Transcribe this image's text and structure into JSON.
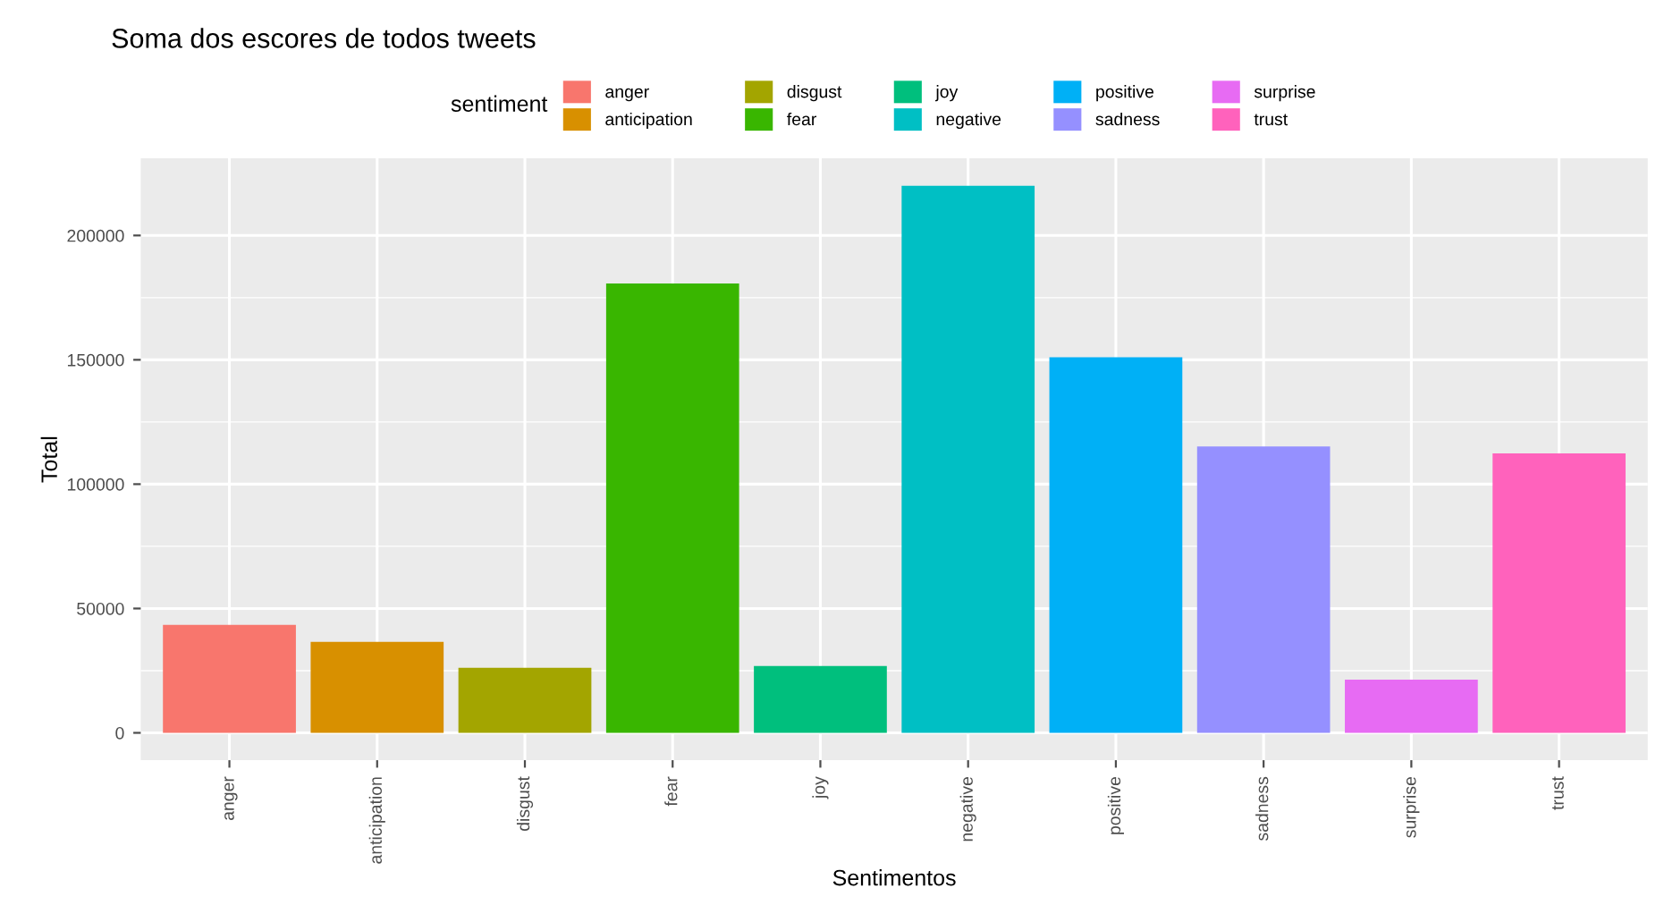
{
  "chart_data": {
    "type": "bar",
    "title": "Soma dos escores de todos tweets",
    "xlabel": "Sentimentos",
    "ylabel": "Total",
    "legend_title": "sentiment",
    "stacked": true,
    "categories": [
      "anger",
      "anticipation",
      "disgust",
      "fear",
      "joy",
      "negative",
      "positive",
      "sadness",
      "surprise",
      "trust"
    ],
    "series": [
      {
        "name": "anger",
        "color": "#F8766D",
        "values": [
          43400,
          null,
          null,
          null,
          null,
          null,
          null,
          null,
          null,
          null
        ]
      },
      {
        "name": "anticipation",
        "color": "#D89000",
        "values": [
          null,
          36600,
          null,
          null,
          null,
          null,
          null,
          null,
          null,
          null
        ]
      },
      {
        "name": "disgust",
        "color": "#A3A500",
        "values": [
          null,
          null,
          26200,
          null,
          null,
          null,
          null,
          null,
          null,
          null
        ]
      },
      {
        "name": "fear",
        "color": "#39B600",
        "values": [
          null,
          null,
          null,
          180700,
          null,
          null,
          null,
          null,
          null,
          null
        ]
      },
      {
        "name": "joy",
        "color": "#00BF7D",
        "values": [
          null,
          null,
          null,
          null,
          26900,
          null,
          null,
          null,
          null,
          null
        ]
      },
      {
        "name": "negative",
        "color": "#00BFC4",
        "values": [
          null,
          null,
          null,
          null,
          null,
          220000,
          null,
          null,
          null,
          null
        ]
      },
      {
        "name": "positive",
        "color": "#00B0F6",
        "values": [
          null,
          null,
          null,
          null,
          null,
          null,
          151000,
          null,
          null,
          null
        ]
      },
      {
        "name": "sadness",
        "color": "#9590FF",
        "values": [
          null,
          null,
          null,
          null,
          null,
          null,
          null,
          115200,
          null,
          null
        ]
      },
      {
        "name": "surprise",
        "color": "#E76BF3",
        "values": [
          null,
          null,
          null,
          null,
          null,
          null,
          null,
          null,
          21400,
          null
        ]
      },
      {
        "name": "trust",
        "color": "#FF62BC",
        "values": [
          null,
          null,
          null,
          null,
          null,
          null,
          null,
          null,
          null,
          112400
        ]
      }
    ],
    "ylim": [
      -11000,
      231000
    ],
    "yticks": [
      0,
      50000,
      100000,
      150000,
      200000
    ],
    "grid": true,
    "legend": "top"
  }
}
